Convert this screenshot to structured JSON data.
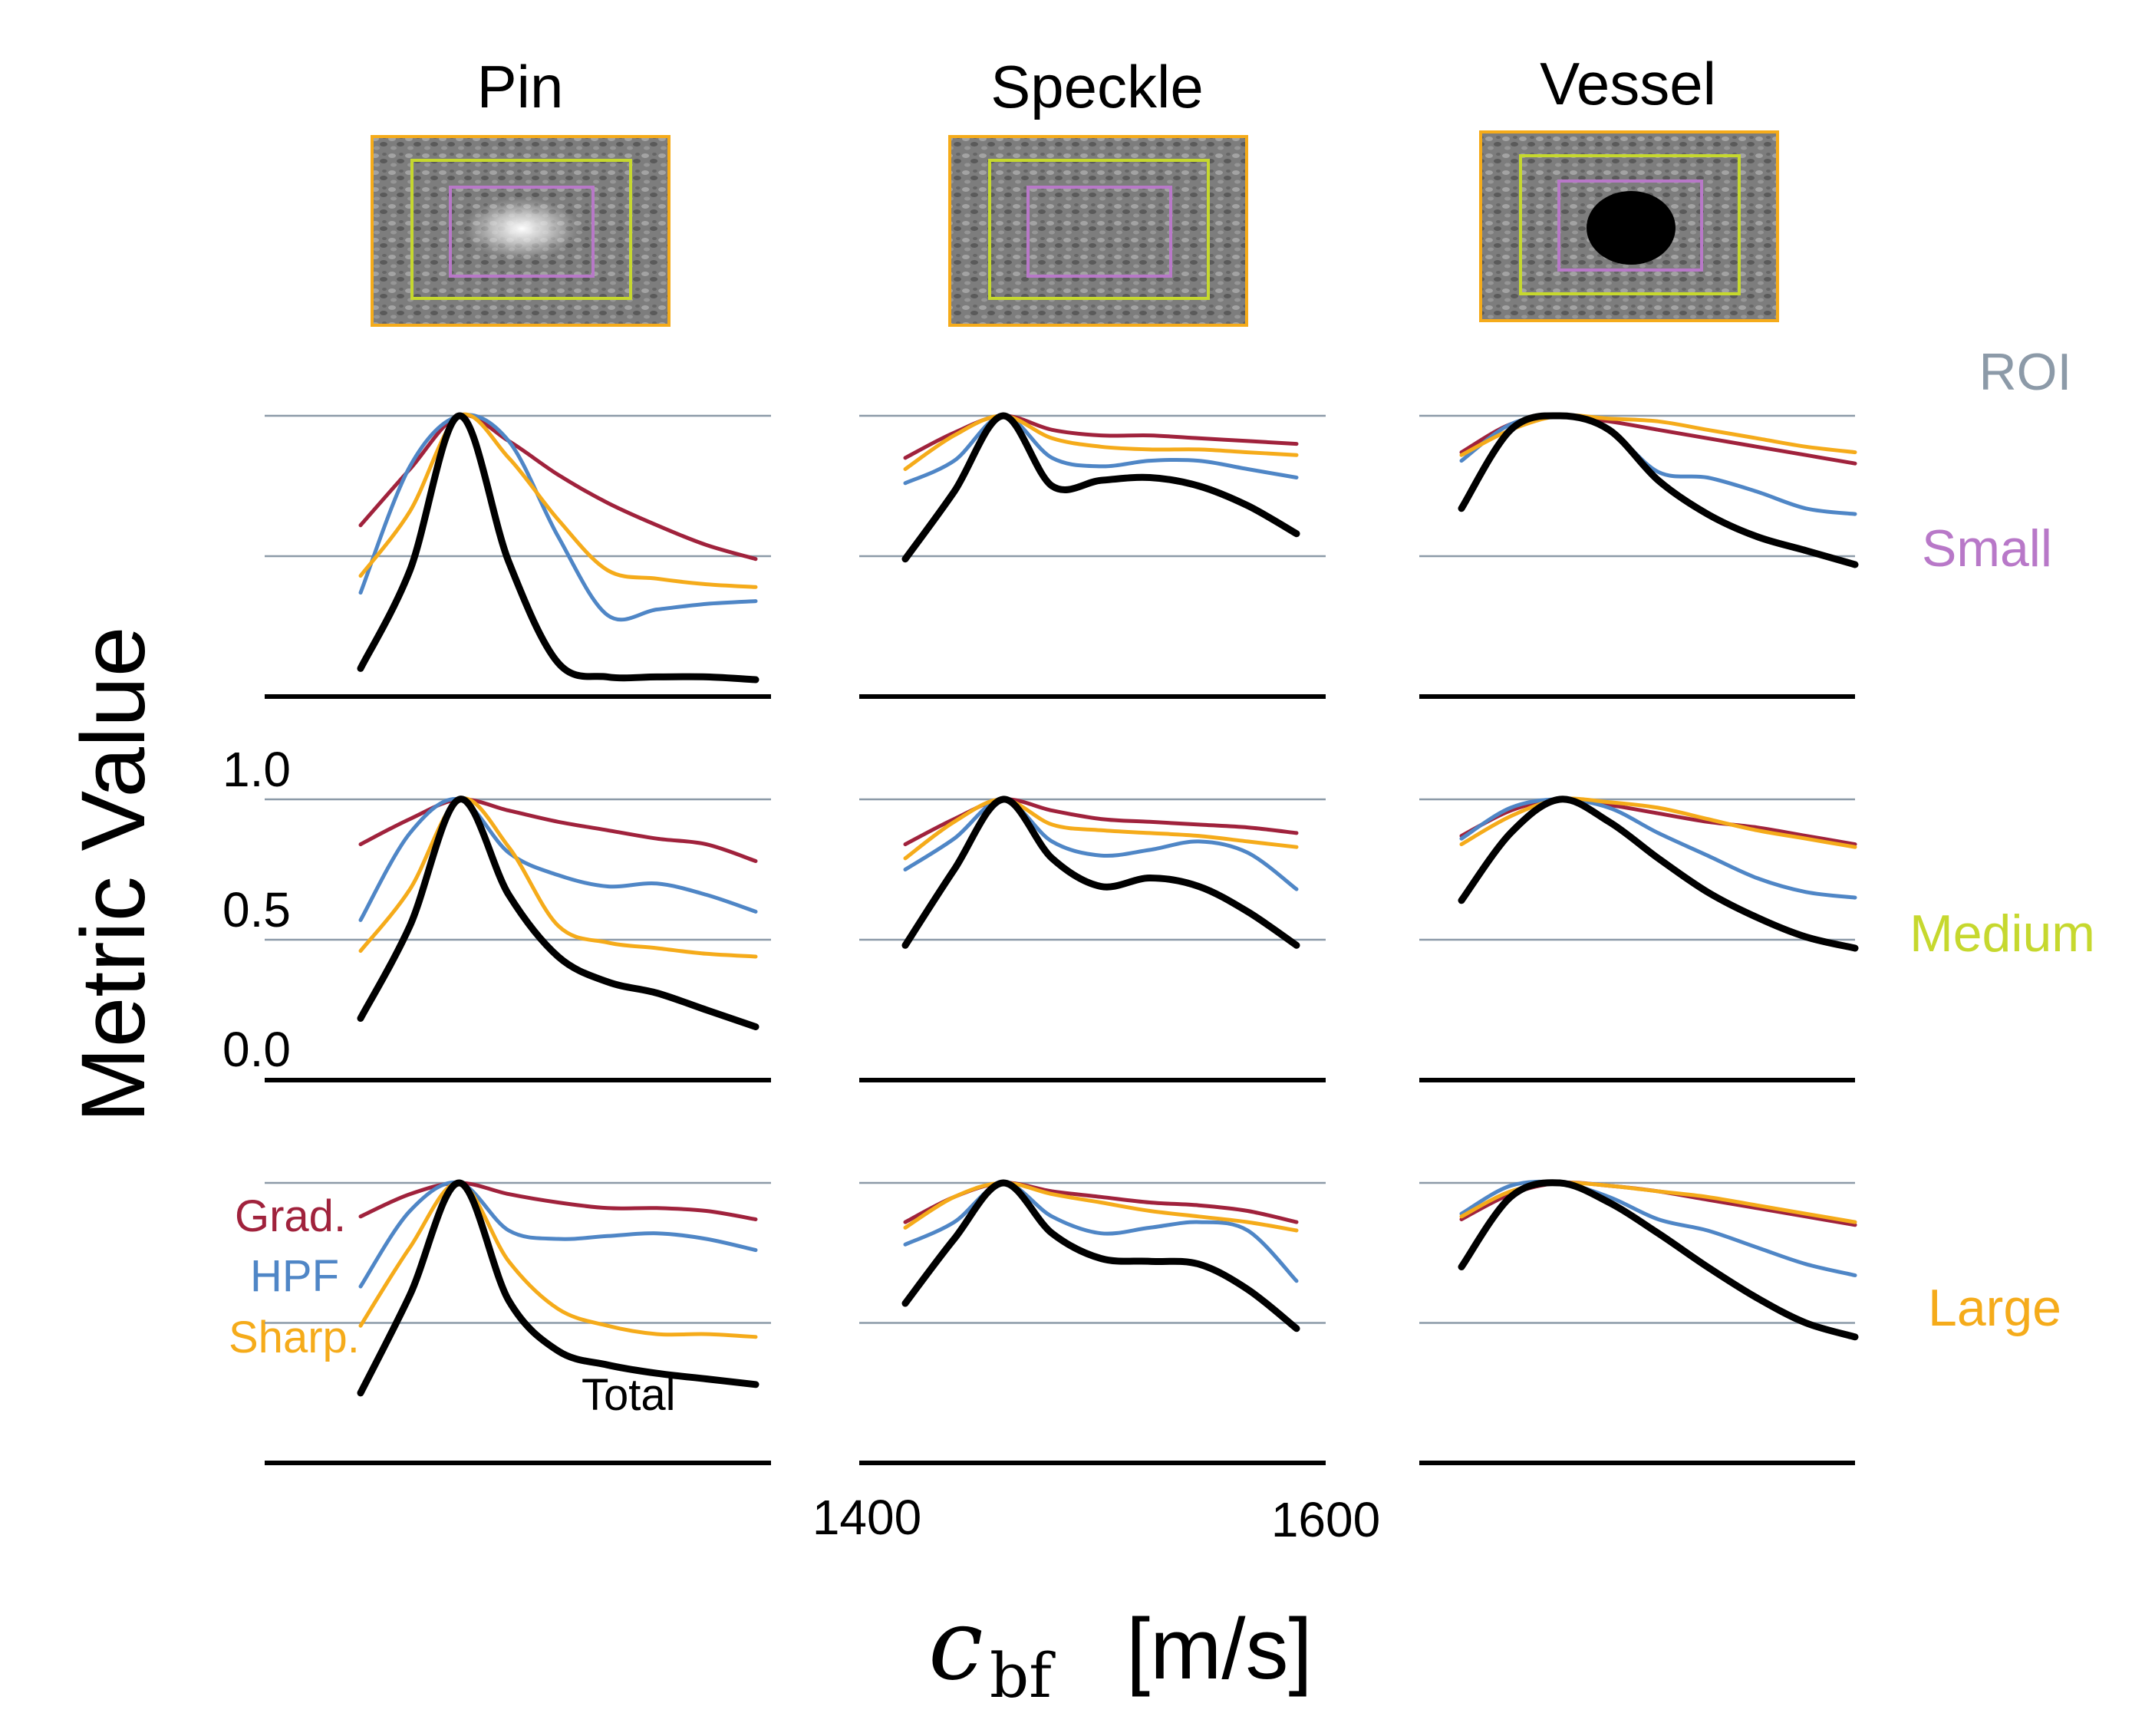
{
  "figure": {
    "y_axis_label": "Metric Value",
    "x_axis_label_symbol": "c",
    "x_axis_label_subscript": "bf",
    "x_axis_label_unit": "[m/s]",
    "roi_header": "ROI"
  },
  "colors": {
    "grad": "#a0223c",
    "hpf": "#4f86c6",
    "sharp": "#f5ab1a",
    "total": "#000000",
    "roi_header": "#8c9aa8",
    "small": "#b878c8",
    "medium": "#c6d82e",
    "large": "#f5ab1a",
    "thumb_border": "#f5ab1a"
  },
  "thumbnails": [
    {
      "name": "Pin"
    },
    {
      "name": "Speckle"
    },
    {
      "name": "Vessel"
    }
  ],
  "rows": [
    {
      "label": "Small"
    },
    {
      "label": "Medium"
    },
    {
      "label": "Large"
    }
  ],
  "legend": {
    "grad": "Grad.",
    "hpf": "HPF",
    "sharp": "Sharp.",
    "total": "Total"
  },
  "chart_data": {
    "type": "line",
    "title": "",
    "xlabel": "c_bf [m/s]",
    "ylabel": "Metric Value",
    "xlim": [
      1400,
      1600
    ],
    "ylim": [
      0.0,
      1.0
    ],
    "xticks": [
      "1400",
      "1600"
    ],
    "yticks": [
      "1.0",
      "0.5",
      "0.0"
    ],
    "columns": [
      "Pin",
      "Speckle",
      "Vessel"
    ],
    "rows": [
      "Small",
      "Medium",
      "Large"
    ],
    "x": [
      1420,
      1440,
      1460,
      1480,
      1500,
      1520,
      1540,
      1560,
      1580
    ],
    "series_names": [
      "Grad.",
      "HPF",
      "Sharp.",
      "Total"
    ],
    "panels": [
      [
        {
          "grad": [
            0.61,
            0.81,
            1.0,
            0.91,
            0.79,
            0.69,
            0.61,
            0.54,
            0.49
          ],
          "hpf": [
            0.37,
            0.82,
            1.0,
            0.91,
            0.57,
            0.29,
            0.31,
            0.33,
            0.34
          ],
          "sharp": [
            0.43,
            0.66,
            1.0,
            0.85,
            0.63,
            0.45,
            0.42,
            0.4,
            0.39
          ],
          "total": [
            0.1,
            0.45,
            1.0,
            0.48,
            0.12,
            0.07,
            0.07,
            0.07,
            0.06
          ]
        },
        {
          "grad": [
            0.85,
            0.94,
            1.0,
            0.95,
            0.93,
            0.93,
            0.92,
            0.91,
            0.9
          ],
          "hpf": [
            0.76,
            0.84,
            1.0,
            0.85,
            0.82,
            0.84,
            0.84,
            0.81,
            0.78
          ],
          "sharp": [
            0.81,
            0.93,
            1.0,
            0.92,
            0.89,
            0.88,
            0.88,
            0.87,
            0.86
          ],
          "total": [
            0.49,
            0.73,
            1.0,
            0.75,
            0.77,
            0.78,
            0.75,
            0.68,
            0.58
          ]
        },
        {
          "grad": [
            0.87,
            0.97,
            1.0,
            0.98,
            0.95,
            0.92,
            0.89,
            0.86,
            0.83
          ],
          "hpf": [
            0.84,
            0.97,
            1.0,
            0.95,
            0.8,
            0.78,
            0.73,
            0.67,
            0.65
          ],
          "sharp": [
            0.86,
            0.95,
            1.0,
            0.99,
            0.98,
            0.95,
            0.92,
            0.89,
            0.87
          ],
          "total": [
            0.67,
            0.95,
            1.0,
            0.95,
            0.77,
            0.65,
            0.57,
            0.52,
            0.47
          ]
        }
      ],
      [
        {
          "grad": [
            0.84,
            0.93,
            1.0,
            0.96,
            0.92,
            0.89,
            0.86,
            0.84,
            0.78
          ],
          "hpf": [
            0.57,
            0.88,
            1.0,
            0.81,
            0.73,
            0.69,
            0.7,
            0.66,
            0.6
          ],
          "sharp": [
            0.46,
            0.68,
            1.0,
            0.83,
            0.55,
            0.49,
            0.47,
            0.45,
            0.44
          ],
          "total": [
            0.22,
            0.55,
            1.0,
            0.66,
            0.44,
            0.35,
            0.31,
            0.25,
            0.19
          ]
        },
        {
          "grad": [
            0.84,
            0.93,
            1.0,
            0.96,
            0.93,
            0.92,
            0.91,
            0.9,
            0.88
          ],
          "hpf": [
            0.75,
            0.86,
            1.0,
            0.85,
            0.8,
            0.82,
            0.85,
            0.81,
            0.68
          ],
          "sharp": [
            0.79,
            0.92,
            1.0,
            0.91,
            0.89,
            0.88,
            0.87,
            0.85,
            0.83
          ],
          "total": [
            0.48,
            0.75,
            1.0,
            0.79,
            0.69,
            0.72,
            0.69,
            0.6,
            0.48
          ]
        },
        {
          "grad": [
            0.87,
            0.96,
            1.0,
            0.98,
            0.95,
            0.92,
            0.9,
            0.87,
            0.84
          ],
          "hpf": [
            0.86,
            0.97,
            1.0,
            0.97,
            0.88,
            0.8,
            0.72,
            0.67,
            0.65
          ],
          "sharp": [
            0.84,
            0.94,
            1.0,
            0.99,
            0.97,
            0.93,
            0.89,
            0.86,
            0.83
          ],
          "total": [
            0.64,
            0.88,
            1.0,
            0.92,
            0.79,
            0.67,
            0.58,
            0.51,
            0.47
          ]
        }
      ],
      [
        {
          "grad": [
            0.88,
            0.96,
            1.0,
            0.96,
            0.93,
            0.91,
            0.91,
            0.9,
            0.87
          ],
          "hpf": [
            0.63,
            0.9,
            1.0,
            0.83,
            0.8,
            0.81,
            0.82,
            0.8,
            0.76
          ],
          "sharp": [
            0.49,
            0.77,
            1.0,
            0.72,
            0.55,
            0.49,
            0.46,
            0.46,
            0.45
          ],
          "total": [
            0.25,
            0.6,
            1.0,
            0.58,
            0.4,
            0.35,
            0.32,
            0.3,
            0.28
          ]
        },
        {
          "grad": [
            0.86,
            0.95,
            1.0,
            0.97,
            0.95,
            0.93,
            0.92,
            0.9,
            0.86
          ],
          "hpf": [
            0.78,
            0.86,
            1.0,
            0.88,
            0.82,
            0.84,
            0.86,
            0.83,
            0.65
          ],
          "sharp": [
            0.84,
            0.95,
            1.0,
            0.96,
            0.93,
            0.9,
            0.88,
            0.86,
            0.83
          ],
          "total": [
            0.57,
            0.8,
            1.0,
            0.82,
            0.73,
            0.72,
            0.71,
            0.62,
            0.48
          ]
        },
        {
          "grad": [
            0.87,
            0.96,
            1.0,
            0.99,
            0.97,
            0.94,
            0.91,
            0.88,
            0.85
          ],
          "hpf": [
            0.89,
            0.99,
            1.0,
            0.95,
            0.87,
            0.83,
            0.77,
            0.71,
            0.67
          ],
          "sharp": [
            0.88,
            0.97,
            1.0,
            0.99,
            0.97,
            0.95,
            0.92,
            0.89,
            0.86
          ],
          "total": [
            0.7,
            0.95,
            1.0,
            0.93,
            0.82,
            0.7,
            0.59,
            0.5,
            0.45
          ]
        }
      ]
    ]
  }
}
